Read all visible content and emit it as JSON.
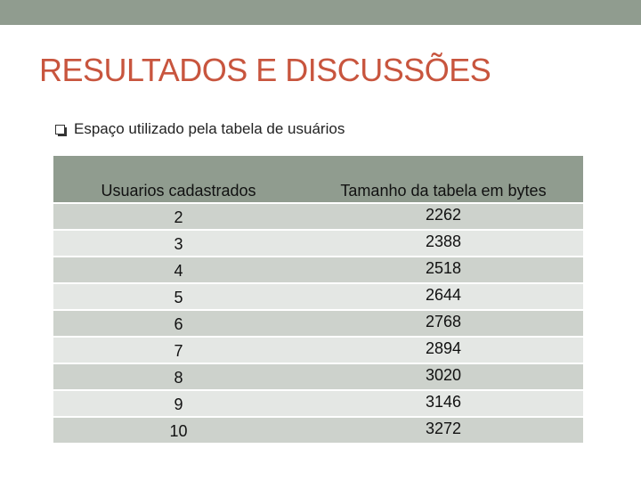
{
  "slide": {
    "title": "RESULTADOS E DISCUSSÕES",
    "bullet": "Espaço utilizado pela tabela de usuários"
  },
  "table": {
    "headers": [
      "Usuarios cadastrados",
      "Tamanho da tabela em bytes"
    ],
    "rows": [
      [
        "2",
        "2262"
      ],
      [
        "3",
        "2388"
      ],
      [
        "4",
        "2518"
      ],
      [
        "5",
        "2644"
      ],
      [
        "6",
        "2768"
      ],
      [
        "7",
        "2894"
      ],
      [
        "8",
        "3020"
      ],
      [
        "9",
        "3146"
      ],
      [
        "10",
        "3272"
      ]
    ]
  },
  "colors": {
    "accent_band": "#909c8f",
    "title": "#c8553e",
    "row_dark": "#cdd2cc",
    "row_light": "#e4e7e4"
  }
}
